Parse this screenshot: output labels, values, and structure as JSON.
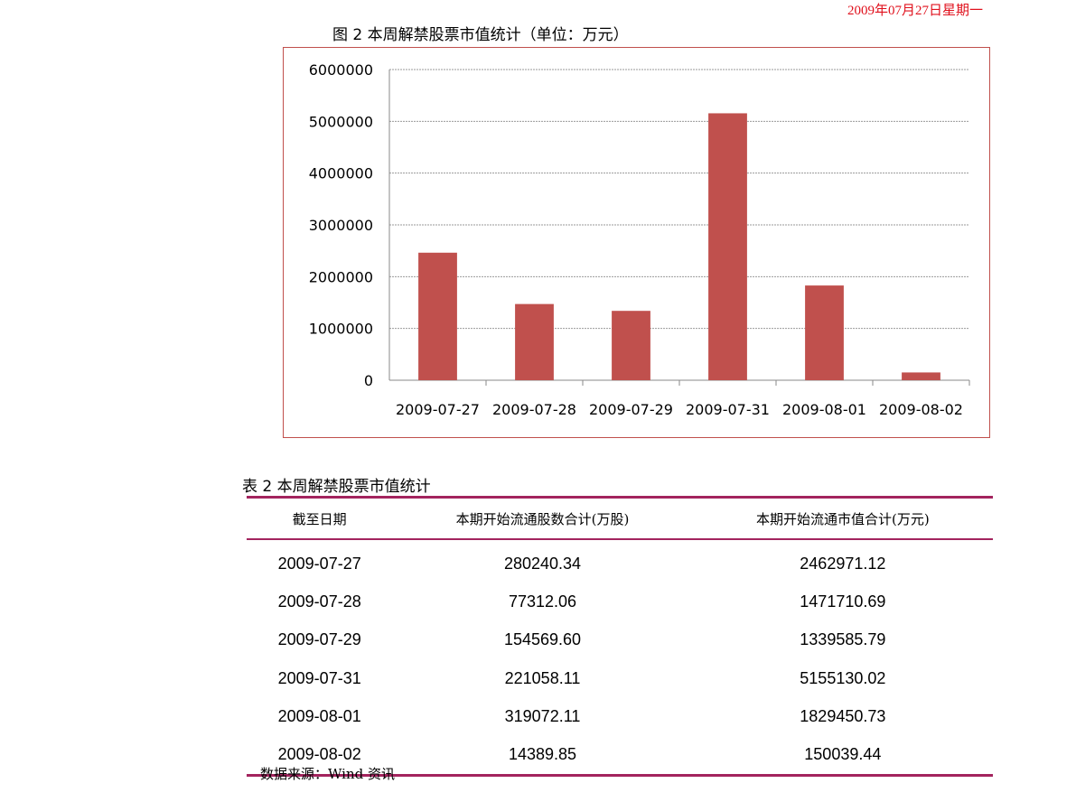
{
  "header": {
    "date": "2009年07月27日星期一"
  },
  "figure": {
    "title": "图 2 本周解禁股票市值统计（单位：万元）"
  },
  "chart_data": {
    "type": "bar",
    "title": "图 2 本周解禁股票市值统计（单位：万元）",
    "categories": [
      "2009-07-27",
      "2009-07-28",
      "2009-07-29",
      "2009-07-31",
      "2009-08-01",
      "2009-08-02"
    ],
    "values": [
      2462971.12,
      1471710.69,
      1339585.79,
      5155130.02,
      1829450.73,
      150039.44
    ],
    "yticks": [
      "0",
      "1000000",
      "2000000",
      "3000000",
      "4000000",
      "5000000",
      "6000000"
    ],
    "ylim": [
      0,
      6000000
    ],
    "grid": true,
    "bar_color": "#c0504d",
    "xlabel": "",
    "ylabel": ""
  },
  "table": {
    "title": "表 2 本周解禁股票市值统计",
    "headers": [
      "截至日期",
      "本期开始流通股数合计(万股)",
      "本期开始流通市值合计(万元)"
    ],
    "rows": [
      [
        "2009-07-27",
        "280240.34",
        "2462971.12"
      ],
      [
        "2009-07-28",
        "77312.06",
        "1471710.69"
      ],
      [
        "2009-07-29",
        "154569.60",
        "1339585.79"
      ],
      [
        "2009-07-31",
        "221058.11",
        "5155130.02"
      ],
      [
        "2009-08-01",
        "319072.11",
        "1829450.73"
      ],
      [
        "2009-08-02",
        "14389.85",
        "150039.44"
      ]
    ],
    "source": "数据来源：Wind 资讯"
  }
}
